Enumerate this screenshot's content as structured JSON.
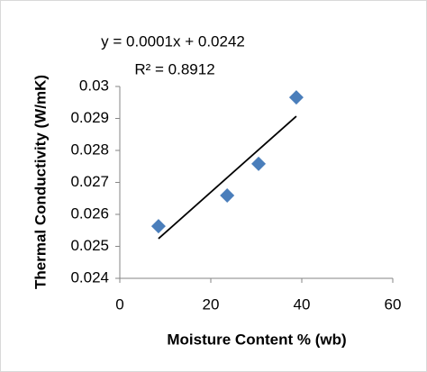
{
  "chart_data": {
    "type": "scatter",
    "annotations": [
      "y = 0.0001x + 0.0242",
      "R² = 0.8912"
    ],
    "xlabel": "Moisture Content % (wb)",
    "ylabel": "Thermal Conductivity (W/mK)",
    "series": [
      {
        "color": "#4a7ebb",
        "x": [
          8.5,
          23.6,
          30.5,
          38.8
        ],
        "values": [
          0.02563,
          0.02659,
          0.02758,
          0.02966
        ]
      }
    ],
    "trendline": {
      "color": "#000000",
      "x": [
        8.5,
        38.8
      ],
      "values": [
        0.02524,
        0.02907
      ]
    },
    "xlim": [
      0,
      60
    ],
    "xticks": [
      0,
      20,
      40,
      60
    ],
    "ylim": [
      0.024,
      0.03
    ],
    "yticks": [
      0.024,
      0.025,
      0.026,
      0.027,
      0.028,
      0.029,
      0.03
    ],
    "grid": false
  }
}
